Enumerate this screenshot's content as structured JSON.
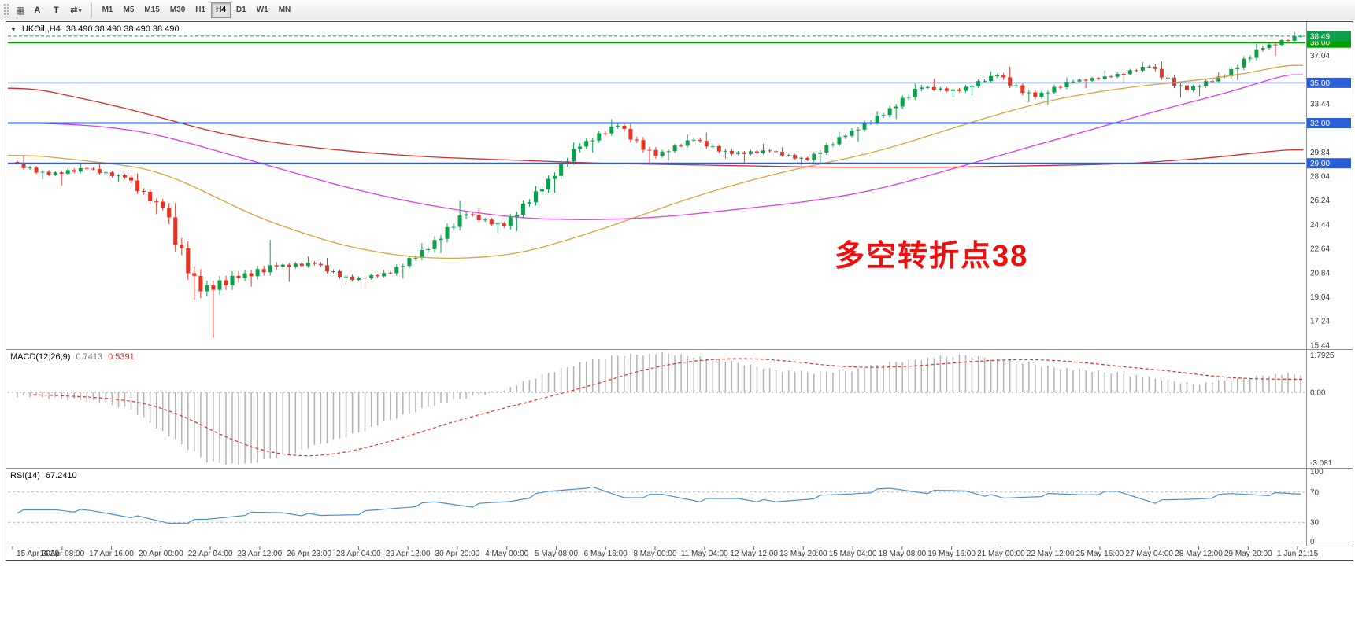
{
  "toolbar": {
    "tool_a": "A",
    "tool_t": "T",
    "draw_tools_icon": "⇄",
    "caret": "▾",
    "chart_grid_icon": "▦",
    "timeframes": [
      "M1",
      "M5",
      "M15",
      "M30",
      "H1",
      "H4",
      "D1",
      "W1",
      "MN"
    ],
    "active_timeframe": "H4"
  },
  "chart": {
    "collapse_icon": "▼",
    "symbol_label": "UKOil.,H4",
    "ohlc_text": "38.490 38.490 38.490 38.490",
    "annotation": {
      "text": "多空转折点38",
      "color": "#f20d0d"
    }
  },
  "chart_data": {
    "type": "candlestick",
    "symbol": "UKOil",
    "timeframe": "H4",
    "period_per_row": "1 trading day (rendered as 6 H4 bars)",
    "price_axis": {
      "y_max": 39.42,
      "y_min": 15.2,
      "ticks": [
        37.04,
        33.44,
        29.84,
        28.04,
        26.24,
        24.44,
        22.64,
        20.84,
        19.04,
        17.24,
        15.44
      ]
    },
    "current_price": {
      "value": 38.49,
      "label": "38.49"
    },
    "hlines": [
      {
        "price": 38.0,
        "label": "38.00",
        "color": "green",
        "width": 2
      },
      {
        "price": 35.0,
        "label": "35.00",
        "color": "blue",
        "width": 1.4
      },
      {
        "price": 32.0,
        "label": "32.00",
        "color": "blue",
        "width": 2
      },
      {
        "price": 29.0,
        "label": "29.00",
        "color": "blue",
        "width": 2
      }
    ],
    "ohlc_columns": [
      "date",
      "open",
      "high",
      "low",
      "close"
    ],
    "days": [
      [
        "15 Apr",
        29.1,
        29.62,
        27.8,
        28.15
      ],
      [
        "16 Apr",
        28.15,
        29.05,
        27.35,
        28.6
      ],
      [
        "17 Apr",
        28.6,
        29.1,
        27.6,
        27.95
      ],
      [
        "20 Apr",
        27.95,
        28.25,
        25.2,
        25.7
      ],
      [
        "21 Apr",
        25.7,
        26.05,
        18.85,
        19.45
      ],
      [
        "22 Apr",
        19.45,
        20.95,
        15.98,
        20.45
      ],
      [
        "23 Apr",
        20.45,
        23.3,
        19.8,
        21.3
      ],
      [
        "24 Apr",
        21.3,
        22.05,
        20.15,
        21.5
      ],
      [
        "27 Apr",
        21.5,
        21.95,
        19.95,
        20.3
      ],
      [
        "28 Apr",
        20.3,
        21.05,
        19.6,
        20.8
      ],
      [
        "29 Apr",
        20.8,
        23.05,
        20.4,
        22.6
      ],
      [
        "30 Apr",
        22.6,
        26.2,
        22.3,
        25.2
      ],
      [
        "1 May",
        25.2,
        25.65,
        23.8,
        24.3
      ],
      [
        "4 May",
        24.3,
        27.3,
        23.95,
        27.05
      ],
      [
        "5 May",
        27.05,
        30.55,
        26.8,
        30.25
      ],
      [
        "6 May",
        30.25,
        32.3,
        29.8,
        31.8
      ],
      [
        "7 May",
        31.8,
        32.05,
        28.9,
        29.55
      ],
      [
        "8 May",
        29.55,
        31.15,
        29.2,
        30.75
      ],
      [
        "11 May",
        30.75,
        31.3,
        29.35,
        29.7
      ],
      [
        "12 May",
        29.7,
        30.45,
        28.95,
        29.9
      ],
      [
        "13 May",
        29.9,
        30.2,
        28.85,
        29.25
      ],
      [
        "14 May",
        29.25,
        31.35,
        29.0,
        31.05
      ],
      [
        "15 May",
        31.05,
        32.9,
        30.6,
        32.6
      ],
      [
        "18 May",
        32.6,
        34.95,
        32.3,
        34.65
      ],
      [
        "19 May",
        34.65,
        35.3,
        33.9,
        34.4
      ],
      [
        "20 May",
        34.4,
        35.85,
        34.1,
        35.55
      ],
      [
        "21 May",
        35.55,
        36.2,
        33.55,
        33.95
      ],
      [
        "22 May",
        33.95,
        35.4,
        33.4,
        35.1
      ],
      [
        "25 May",
        35.1,
        35.9,
        34.6,
        35.45
      ],
      [
        "26 May",
        35.45,
        36.55,
        35.05,
        36.2
      ],
      [
        "27 May",
        36.2,
        36.6,
        33.9,
        34.45
      ],
      [
        "28 May",
        34.45,
        35.8,
        34.0,
        35.5
      ],
      [
        "29 May",
        35.5,
        37.9,
        35.2,
        37.6
      ],
      [
        "1 Jun",
        37.6,
        38.8,
        37.0,
        38.49
      ]
    ],
    "moving_averages": [
      {
        "name": "fast-orange",
        "color": "#e0a23b",
        "values": [
          29.6,
          29.3,
          29.0,
          28.6,
          27.6,
          26.2,
          24.9,
          23.9,
          23.0,
          22.4,
          22.0,
          21.9,
          22.0,
          22.4,
          23.2,
          24.1,
          25.1,
          26.1,
          27.0,
          27.8,
          28.5,
          29.1,
          29.7,
          30.5,
          31.4,
          32.3,
          33.1,
          33.8,
          34.3,
          34.7,
          35.0,
          35.3,
          35.7,
          36.3
        ]
      },
      {
        "name": "mid-magenta",
        "color": "#e33ce3",
        "values": [
          32.0,
          31.9,
          31.7,
          31.3,
          30.6,
          29.8,
          29.0,
          28.2,
          27.4,
          26.7,
          26.1,
          25.6,
          25.2,
          24.9,
          24.8,
          24.8,
          24.9,
          25.1,
          25.4,
          25.7,
          26.0,
          26.4,
          26.9,
          27.6,
          28.4,
          29.2,
          30.0,
          30.8,
          31.6,
          32.4,
          33.2,
          33.9,
          34.7,
          35.6
        ]
      },
      {
        "name": "slow-red",
        "color": "#d92b2b",
        "values": [
          34.6,
          34.0,
          33.4,
          32.7,
          31.9,
          31.2,
          30.7,
          30.3,
          30.0,
          29.75,
          29.55,
          29.4,
          29.3,
          29.2,
          29.1,
          29.0,
          28.95,
          28.9,
          28.85,
          28.8,
          28.75,
          28.7,
          28.7,
          28.7,
          28.7,
          28.75,
          28.8,
          28.85,
          28.9,
          29.0,
          29.2,
          29.4,
          29.7,
          30.0
        ]
      }
    ],
    "time_labels": [
      "15 Apr 2020",
      "16 Apr 08:00",
      "17 Apr 16:00",
      "20 Apr 00:00",
      "22 Apr 04:00",
      "23 Apr 12:00",
      "26 Apr 23:00",
      "28 Apr 04:00",
      "29 Apr 12:00",
      "30 Apr 20:00",
      "4 May 00:00",
      "5 May 08:00",
      "6 May 16:00",
      "8 May 00:00",
      "11 May 04:00",
      "12 May 12:00",
      "13 May 20:00",
      "15 May 04:00",
      "18 May 08:00",
      "19 May 16:00",
      "21 May 00:00",
      "22 May 12:00",
      "25 May 16:00",
      "27 May 04:00",
      "28 May 12:00",
      "29 May 20:00",
      "1 Jun 21:15"
    ],
    "macd": {
      "label": "MACD(12,26,9)",
      "value_main": "0.7413",
      "value_signal": "0.5391",
      "axis_labels": {
        "max": "1.7925",
        "zero": "0.00",
        "min": "-3.081"
      },
      "daily_macd": [
        -0.15,
        -0.25,
        -0.35,
        -0.7,
        -1.8,
        -2.85,
        -3.0,
        -2.6,
        -2.15,
        -1.65,
        -1.05,
        -0.5,
        -0.18,
        0.2,
        0.8,
        1.3,
        1.55,
        1.6,
        1.45,
        1.2,
        0.92,
        0.8,
        0.92,
        1.22,
        1.42,
        1.52,
        1.35,
        1.1,
        0.92,
        0.8,
        0.55,
        0.35,
        0.5,
        0.74
      ],
      "daily_signal": [
        -0.1,
        -0.15,
        -0.25,
        -0.45,
        -1.0,
        -1.8,
        -2.4,
        -2.65,
        -2.55,
        -2.2,
        -1.75,
        -1.25,
        -0.82,
        -0.42,
        -0.02,
        0.42,
        0.9,
        1.22,
        1.38,
        1.4,
        1.28,
        1.1,
        1.02,
        1.06,
        1.18,
        1.3,
        1.36,
        1.32,
        1.18,
        1.02,
        0.88,
        0.68,
        0.56,
        0.54
      ]
    },
    "rsi": {
      "label": "RSI(14)",
      "value": "67.2410",
      "levels": [
        100,
        70,
        30,
        0
      ],
      "daily": [
        44,
        47,
        44,
        38,
        29,
        33,
        41,
        43,
        38,
        42,
        49,
        56,
        52,
        58,
        70,
        77,
        63,
        66,
        59,
        62,
        56,
        63,
        68,
        74,
        70,
        72,
        61,
        66,
        67,
        70,
        57,
        61,
        67,
        67.24
      ]
    },
    "colors": {
      "up": "#0da04b",
      "down": "#ea3323",
      "hline_green": "#00a000",
      "hline_blue": "#2b5fd9",
      "macd_hist": "#b2b2b2",
      "macd_signal": "#e03030",
      "rsi_line": "#4a8fd4"
    }
  }
}
